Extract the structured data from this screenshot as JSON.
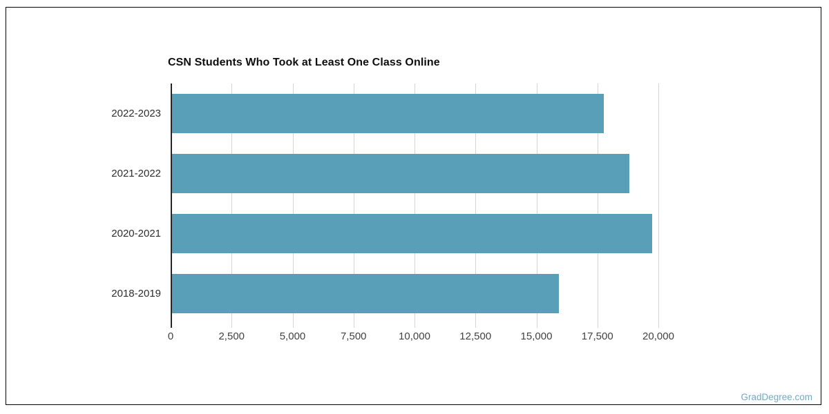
{
  "chart_data": {
    "type": "bar",
    "orientation": "horizontal",
    "title": "CSN Students Who Took at Least One Class Online",
    "categories": [
      "2022-2023",
      "2021-2022",
      "2020-2021",
      "2018-2019"
    ],
    "values": [
      17700,
      18750,
      19700,
      15850
    ],
    "xlabel": "",
    "ylabel": "",
    "xlim": [
      0,
      20000
    ],
    "x_ticks": [
      0,
      2500,
      5000,
      7500,
      10000,
      12500,
      15000,
      17500,
      20000
    ],
    "x_tick_labels": [
      "0",
      "2,500",
      "5,000",
      "7,500",
      "10,000",
      "12,500",
      "15,000",
      "17,500",
      "20,000"
    ],
    "grid": "vertical",
    "legend": "none",
    "bar_color": "#5a9fb8"
  },
  "watermark": {
    "text": "GradDegree.com",
    "color": "#74a9c5"
  }
}
